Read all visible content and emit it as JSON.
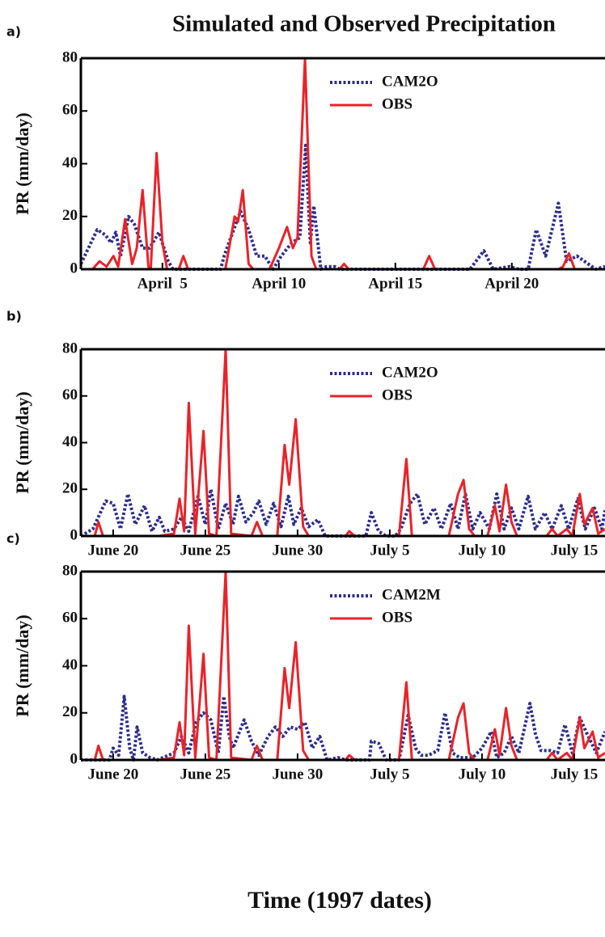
{
  "chart_data": [
    {
      "type": "line",
      "panel_label": "a)",
      "title": "Simulated and Observed Precipitation",
      "ylabel": "PR (mm/day)",
      "xlim": [
        1.5,
        24
      ],
      "ylim": [
        0,
        80
      ],
      "yticks": [
        0,
        20,
        40,
        60,
        80
      ],
      "xticks": [
        {
          "value": 5,
          "label": "April  5"
        },
        {
          "value": 10,
          "label": "April 10"
        },
        {
          "value": 15,
          "label": "April 15"
        },
        {
          "value": 20,
          "label": "April 20"
        }
      ],
      "series": [
        {
          "name": "CAM2O",
          "color": "#2b2e8c",
          "dashed": true,
          "x": [
            1.5,
            2.2,
            2.55,
            2.8,
            3.0,
            3.2,
            3.55,
            3.8,
            4.15,
            4.45,
            4.85,
            5.25,
            5.45,
            7.5,
            7.65,
            8.35,
            8.7,
            9.05,
            9.4,
            9.75,
            10.1,
            10.55,
            10.9,
            11.15,
            11.35,
            11.5,
            11.8,
            12.05,
            12.4,
            12.6,
            18.2,
            18.8,
            19.2,
            19.9,
            20.3,
            20.7,
            21.05,
            21.45,
            22.0,
            22.35,
            22.8,
            23.6,
            24
          ],
          "values": [
            2,
            15,
            13,
            10,
            14,
            5,
            20,
            17,
            8,
            8,
            14,
            3,
            0,
            0,
            5,
            22,
            15,
            5,
            5,
            0,
            5,
            10,
            12,
            47,
            10,
            24,
            0,
            1,
            1,
            0,
            0,
            7,
            0,
            1,
            0,
            0,
            15,
            5,
            25,
            3,
            5,
            0,
            1
          ]
        },
        {
          "name": "OBS",
          "color": "#e8232a",
          "dashed": false,
          "x": [
            1.5,
            2,
            2.3,
            2.6,
            2.9,
            3.1,
            3.4,
            3.7,
            3.9,
            4.15,
            4.4,
            4.5,
            4.75,
            5,
            5.2,
            5.7,
            5.9,
            6.1,
            7.7,
            8.1,
            8.25,
            8.45,
            8.7,
            8.9,
            9.6,
            10,
            10.35,
            10.6,
            10.8,
            11.12,
            11.4,
            11.6,
            12.6,
            12.8,
            13,
            16.2,
            16.45,
            16.7,
            22,
            22.2,
            22.45,
            22.7,
            24
          ],
          "values": [
            0,
            0,
            3,
            1,
            5,
            1,
            19,
            2,
            8,
            30,
            1,
            0,
            44,
            10,
            0,
            0,
            5,
            0,
            0,
            20,
            18,
            30,
            2,
            0,
            0,
            8,
            16,
            8,
            12,
            80,
            5,
            0,
            0,
            2,
            0,
            0,
            5,
            0,
            0,
            1,
            6,
            0,
            0
          ]
        }
      ]
    },
    {
      "type": "line",
      "panel_label": "b)",
      "ylabel": "PR (mm/day)",
      "xlim": [
        18.25,
        46.67
      ],
      "ylim": [
        0,
        80
      ],
      "yticks": [
        0,
        20,
        40,
        60,
        80
      ],
      "xticks": [
        {
          "value": 20,
          "label": "June 20"
        },
        {
          "value": 25,
          "label": "June 25"
        },
        {
          "value": 30,
          "label": "June 30"
        },
        {
          "value": 35,
          "label": "July 5"
        },
        {
          "value": 40,
          "label": "July 10"
        },
        {
          "value": 45,
          "label": "July 15"
        }
      ],
      "series": [
        {
          "name": "CAM2O",
          "color": "#2b2e8c",
          "dashed": true,
          "x": [
            18.25,
            18.9,
            19.6,
            20.0,
            20.4,
            20.8,
            21.2,
            21.7,
            22.1,
            22.5,
            22.8,
            23.3,
            23.7,
            24.1,
            24.6,
            25.0,
            25.3,
            25.7,
            26.1,
            26.5,
            26.8,
            27.2,
            27.6,
            27.9,
            28.3,
            28.7,
            29.1,
            29.5,
            29.8,
            30.2,
            30.6,
            31.1,
            31.5,
            33.7,
            34.0,
            34.4,
            34.8,
            35.3,
            35.6,
            36.1,
            36.5,
            36.9,
            37.4,
            37.8,
            38.3,
            38.7,
            39.1,
            39.5,
            39.9,
            40.4,
            40.8,
            41.2,
            41.6,
            42.0,
            42.5,
            42.9,
            43.4,
            43.8,
            44.3,
            44.7,
            45.2,
            45.6,
            46.1,
            46.5,
            46.67
          ],
          "values": [
            0,
            3,
            15,
            14,
            3,
            18,
            5,
            13,
            2,
            8,
            2,
            3,
            8,
            2,
            17,
            5,
            20,
            3,
            14,
            5,
            17,
            6,
            10,
            15,
            5,
            14,
            4,
            17,
            5,
            12,
            4,
            7,
            0,
            0,
            10,
            2,
            0,
            0,
            3,
            14,
            18,
            5,
            12,
            3,
            14,
            3,
            18,
            3,
            10,
            3,
            18,
            3,
            12,
            3,
            17,
            3,
            10,
            3,
            13,
            3,
            16,
            3,
            12,
            3,
            11
          ]
        },
        {
          "name": "OBS",
          "color": "#e8232a",
          "dashed": false,
          "x": [
            18.25,
            19.0,
            19.2,
            19.45,
            22.5,
            23.3,
            23.6,
            23.85,
            24.1,
            24.45,
            24.9,
            25.2,
            25.6,
            26.1,
            26.4,
            27.5,
            27.8,
            28.1,
            28.9,
            29.3,
            29.55,
            29.9,
            30.3,
            30.6,
            32.6,
            32.8,
            33.1,
            35.5,
            35.9,
            36.2,
            38.2,
            38.7,
            39.0,
            39.3,
            39.6,
            40.3,
            40.7,
            40.95,
            41.3,
            41.6,
            41.9,
            43.5,
            43.8,
            44.1,
            44.6,
            44.9,
            45.3,
            45.55,
            46.0,
            46.3,
            46.67
          ],
          "values": [
            0,
            0,
            6,
            0,
            0,
            1,
            16,
            2,
            57,
            1,
            45,
            1,
            0,
            80,
            1,
            0,
            6,
            0,
            0,
            39,
            22,
            50,
            4,
            0,
            0,
            2,
            0,
            0,
            33,
            0,
            0,
            18,
            24,
            3,
            0,
            0,
            13,
            2,
            22,
            6,
            0,
            0,
            3,
            0,
            3,
            0,
            18,
            5,
            12,
            1,
            3
          ]
        }
      ]
    },
    {
      "type": "line",
      "panel_label": "c)",
      "ylabel": "PR (mm/day)",
      "xlabel": "Time (1997 dates)",
      "xlim": [
        18.25,
        46.67
      ],
      "ylim": [
        0,
        80
      ],
      "yticks": [
        0,
        20,
        40,
        60,
        80
      ],
      "xticks": [
        {
          "value": 20,
          "label": "June 20"
        },
        {
          "value": 25,
          "label": "June 25"
        },
        {
          "value": 30,
          "label": "June 30"
        },
        {
          "value": 35,
          "label": "July 5"
        },
        {
          "value": 40,
          "label": "July 10"
        },
        {
          "value": 45,
          "label": "July 15"
        }
      ],
      "series": [
        {
          "name": "CAM2M",
          "color": "#2b2e8c",
          "dashed": true,
          "x": [
            18.25,
            19.8,
            20.0,
            20.3,
            20.6,
            20.9,
            21.1,
            21.3,
            21.6,
            22.0,
            22.4,
            23.3,
            23.7,
            24.1,
            24.5,
            24.9,
            25.3,
            25.7,
            26.0,
            26.3,
            26.5,
            27.1,
            27.5,
            27.9,
            28.4,
            28.8,
            29.2,
            29.6,
            30.0,
            30.4,
            30.8,
            31.2,
            31.6,
            32.2,
            32.6,
            33.9,
            34.0,
            34.4,
            34.8,
            35.5,
            36.0,
            36.4,
            36.7,
            37.1,
            37.6,
            38.0,
            38.4,
            38.8,
            39.5,
            40.0,
            40.5,
            40.8,
            41.2,
            41.6,
            42.0,
            42.6,
            42.9,
            43.2,
            43.7,
            44.1,
            44.5,
            44.9,
            45.3,
            45.7,
            46.2,
            46.67
          ],
          "values": [
            0,
            0,
            5,
            2,
            27,
            5,
            0,
            14,
            3,
            1,
            0,
            3,
            10,
            3,
            16,
            20,
            17,
            3,
            27,
            10,
            5,
            17,
            8,
            2,
            10,
            14,
            10,
            14,
            13,
            16,
            5,
            10,
            0,
            1,
            0,
            0,
            8,
            7,
            0,
            0,
            19,
            5,
            2,
            2,
            4,
            20,
            3,
            1,
            1,
            5,
            12,
            1,
            3,
            10,
            3,
            24,
            11,
            4,
            4,
            3,
            15,
            3,
            18,
            11,
            3,
            12
          ]
        },
        {
          "name": "OBS",
          "color": "#e8232a",
          "dashed": false,
          "x": [
            18.25,
            19.0,
            19.2,
            19.45,
            22.5,
            23.3,
            23.6,
            23.85,
            24.1,
            24.45,
            24.9,
            25.2,
            25.6,
            26.1,
            26.4,
            27.5,
            27.8,
            28.1,
            28.9,
            29.3,
            29.55,
            29.9,
            30.3,
            30.6,
            32.6,
            32.8,
            33.1,
            35.5,
            35.9,
            36.2,
            38.2,
            38.7,
            39.0,
            39.3,
            39.6,
            40.3,
            40.7,
            40.95,
            41.3,
            41.6,
            41.9,
            43.5,
            43.8,
            44.1,
            44.6,
            44.9,
            45.3,
            45.55,
            46.0,
            46.3,
            46.67
          ],
          "values": [
            0,
            0,
            6,
            0,
            0,
            1,
            16,
            2,
            57,
            1,
            45,
            1,
            0,
            80,
            1,
            0,
            6,
            0,
            0,
            39,
            22,
            50,
            4,
            0,
            0,
            2,
            0,
            0,
            33,
            0,
            0,
            18,
            24,
            3,
            0,
            0,
            13,
            2,
            22,
            6,
            0,
            0,
            3,
            0,
            3,
            0,
            18,
            5,
            12,
            1,
            3
          ]
        }
      ]
    }
  ]
}
